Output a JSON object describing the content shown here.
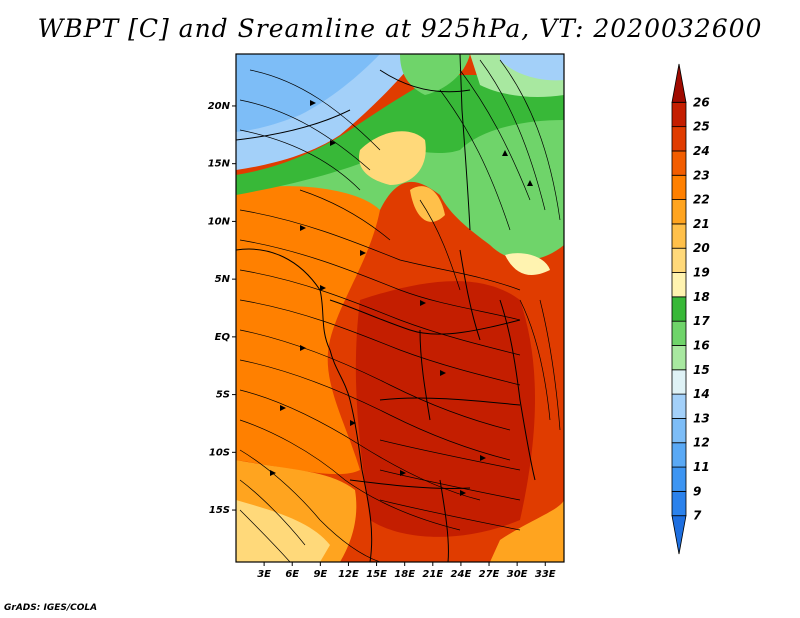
{
  "title": "WBPT [C] and Sreamline at 925hPa, VT: 2020032600",
  "credit": "GrADS: IGES/COLA",
  "axes": {
    "lat_labels": [
      "20N",
      "15N",
      "10N",
      "5N",
      "EQ",
      "5S",
      "10S",
      "15S"
    ],
    "lat_values": [
      20,
      15,
      10,
      5,
      0,
      -5,
      -10,
      -15
    ],
    "lon_labels": [
      "3E",
      "6E",
      "9E",
      "12E",
      "15E",
      "18E",
      "21E",
      "24E",
      "27E",
      "30E",
      "33E"
    ],
    "lon_values": [
      3,
      6,
      9,
      12,
      15,
      18,
      21,
      24,
      27,
      30,
      33
    ],
    "lat_range": [
      -19.5,
      24.5
    ],
    "lon_range": [
      0,
      35
    ]
  },
  "colorbar": {
    "labels": [
      "7",
      "9",
      "11",
      "12",
      "13",
      "14",
      "15",
      "16",
      "17",
      "18",
      "19",
      "20",
      "21",
      "22",
      "23",
      "24",
      "25",
      "26"
    ],
    "colors": [
      "#1e6fe0",
      "#2b82ec",
      "#3d95f2",
      "#5aa9f5",
      "#7dbdf7",
      "#a3d0f9",
      "#dff2f6",
      "#a8e8a0",
      "#6fd46a",
      "#38b838",
      "#fff3b0",
      "#ffd97a",
      "#ffc04a",
      "#ffa41f",
      "#ff8000",
      "#f25d00",
      "#e03c00",
      "#c41e00",
      "#a00a00"
    ]
  },
  "map": {
    "regions": [
      {
        "name": "cold-north-blue",
        "color": "#7dbdf7"
      },
      {
        "name": "light-blue-band",
        "color": "#a3d0f9"
      },
      {
        "name": "green-band",
        "color": "#6fd46a"
      },
      {
        "name": "deep-green",
        "color": "#38b838"
      },
      {
        "name": "yellow-sahel",
        "color": "#ffd97a"
      },
      {
        "name": "orange-west",
        "color": "#ff8000"
      },
      {
        "name": "red-central",
        "color": "#e03c00"
      },
      {
        "name": "dark-red-core",
        "color": "#c41e00"
      },
      {
        "name": "orange-south",
        "color": "#ffa41f"
      }
    ]
  }
}
